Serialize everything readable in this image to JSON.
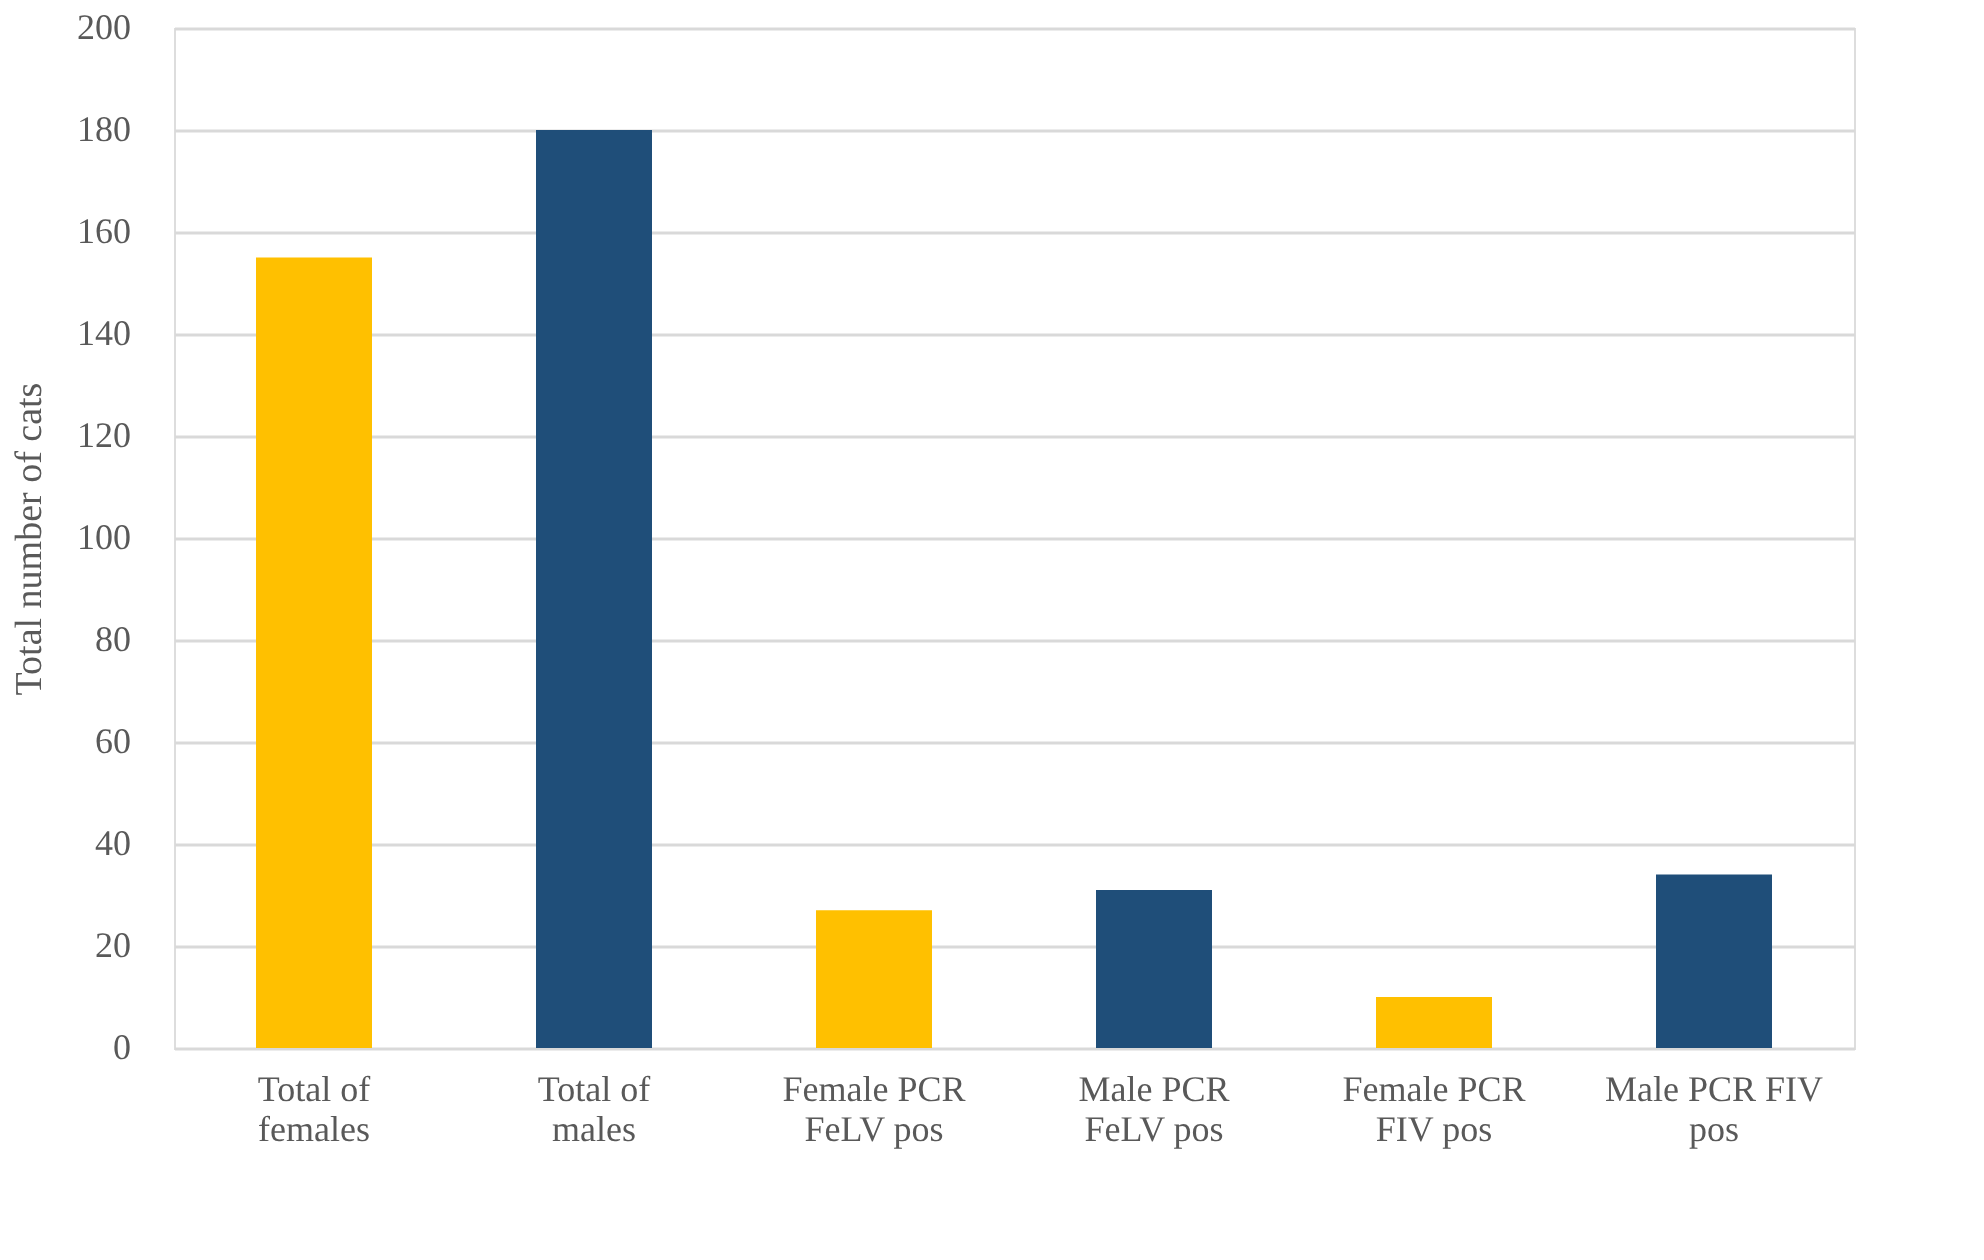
{
  "chart_data": {
    "type": "bar",
    "ylabel": "Total number of cats",
    "categories": [
      "Total of females",
      "Total of males",
      "Female PCR FeLV pos",
      "Male PCR FeLV pos",
      "Female PCR FIV pos",
      "Male PCR FIV pos"
    ],
    "values": [
      155,
      180,
      27,
      31,
      10,
      34
    ],
    "colors": [
      "#ffc000",
      "#1f4e79",
      "#ffc000",
      "#1f4e79",
      "#ffc000",
      "#1f4e79"
    ],
    "ylim": [
      0,
      200
    ],
    "yticks": [
      0,
      20,
      40,
      60,
      80,
      100,
      120,
      140,
      160,
      180,
      200
    ],
    "grid": "y"
  }
}
